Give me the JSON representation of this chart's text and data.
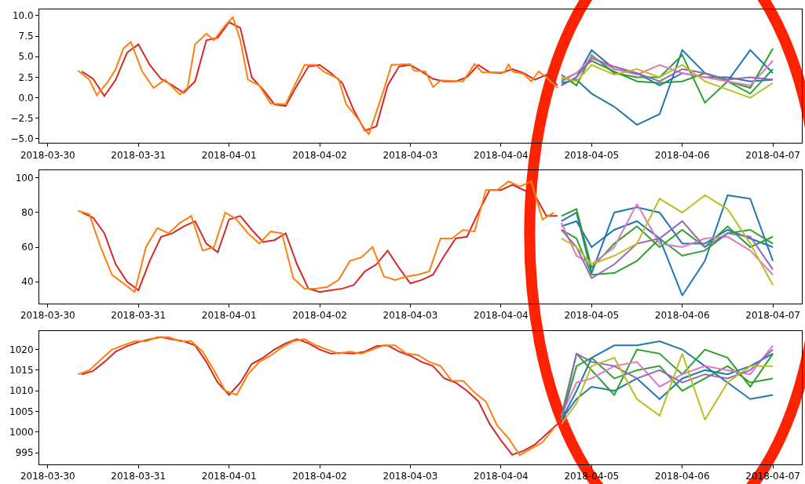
{
  "chart_data": [
    {
      "type": "line",
      "xlim": [
        "2018-03-29T21:45",
        "2018-04-07T07:40"
      ],
      "ylim": [
        -5.5,
        10.76
      ],
      "xticks": [
        "2018-03-30",
        "2018-03-31",
        "2018-04-01",
        "2018-04-02",
        "2018-04-03",
        "2018-04-04",
        "2018-04-05",
        "2018-04-06",
        "2018-04-07"
      ],
      "yticks": [
        {
          "value": -5,
          "label": "−5.0"
        },
        {
          "value": -2.5,
          "label": "−2.5"
        },
        {
          "value": 0,
          "label": "0.0"
        },
        {
          "value": 2.5,
          "label": "2.5"
        },
        {
          "value": 5,
          "label": "5.0"
        },
        {
          "value": 7.5,
          "label": "7.5"
        },
        {
          "value": 10,
          "label": "10.0"
        }
      ],
      "series": [
        {
          "color": "#d62728",
          "x": [
            "2018-03-30T09:00",
            "2018-03-30T12:00",
            "2018-03-30T15:00",
            "2018-03-30T18:00",
            "2018-03-30T21:00",
            "2018-03-31T00:00",
            "2018-03-31T03:00",
            "2018-03-31T06:00",
            "2018-03-31T09:00",
            "2018-03-31T12:00",
            "2018-03-31T15:00",
            "2018-03-31T18:00",
            "2018-03-31T21:00",
            "2018-04-01T00:00",
            "2018-04-01T03:00",
            "2018-04-01T06:00",
            "2018-04-01T09:00",
            "2018-04-01T12:00",
            "2018-04-01T15:00",
            "2018-04-01T18:00",
            "2018-04-01T21:00",
            "2018-04-02T00:00",
            "2018-04-02T03:00",
            "2018-04-02T06:00",
            "2018-04-02T09:00",
            "2018-04-02T12:00",
            "2018-04-02T15:00",
            "2018-04-02T18:00",
            "2018-04-02T21:00",
            "2018-04-03T00:00",
            "2018-04-03T03:00",
            "2018-04-03T06:00",
            "2018-04-03T09:00",
            "2018-04-03T12:00",
            "2018-04-03T15:00",
            "2018-04-03T18:00",
            "2018-04-03T21:00",
            "2018-04-04T00:00",
            "2018-04-04T03:00",
            "2018-04-04T06:00",
            "2018-04-04T09:00",
            "2018-04-04T12:00",
            "2018-04-04T15:00"
          ],
          "values": [
            3.2,
            2.3,
            0.2,
            2.2,
            5.5,
            6.5,
            4.0,
            2.3,
            1.5,
            0.6,
            2.0,
            7.0,
            7.3,
            9.2,
            8.5,
            2.5,
            1.0,
            -0.8,
            -1.0,
            1.5,
            3.8,
            4.0,
            3.0,
            1.8,
            -1.5,
            -4.0,
            -3.5,
            1.5,
            3.8,
            4.0,
            3.2,
            2.3,
            2.0,
            2.0,
            2.5,
            4.0,
            3.1,
            3.0,
            3.5,
            3.0,
            2.2,
            2.8,
            1.5
          ]
        },
        {
          "color": "#ff7f0e",
          "x": [
            "2018-03-30T08:00",
            "2018-03-30T11:00",
            "2018-03-30T13:00",
            "2018-03-30T16:00",
            "2018-03-30T18:00",
            "2018-03-30T20:00",
            "2018-03-30T22:00",
            "2018-03-31T01:00",
            "2018-03-31T04:00",
            "2018-03-31T07:00",
            "2018-03-31T11:00",
            "2018-03-31T13:00",
            "2018-03-31T15:00",
            "2018-03-31T18:00",
            "2018-03-31T20:00",
            "2018-03-31T23:00",
            "2018-04-01T01:00",
            "2018-04-01T03:00",
            "2018-04-01T05:00",
            "2018-04-01T08:00",
            "2018-04-01T11:00",
            "2018-04-01T15:00",
            "2018-04-01T16:00",
            "2018-04-01T20:00",
            "2018-04-01T23:00",
            "2018-04-02T01:00",
            "2018-04-02T05:00",
            "2018-04-02T07:00",
            "2018-04-02T10:00",
            "2018-04-02T13:00",
            "2018-04-02T17:00",
            "2018-04-02T19:00",
            "2018-04-03T00:00",
            "2018-04-03T01:00",
            "2018-04-03T04:00",
            "2018-04-03T06:00",
            "2018-04-03T08:00",
            "2018-04-03T14:00",
            "2018-04-03T17:00",
            "2018-04-03T19:00",
            "2018-04-04T01:00",
            "2018-04-04T02:00",
            "2018-04-04T03:00",
            "2018-04-04T06:00",
            "2018-04-04T08:00",
            "2018-04-04T10:00",
            "2018-04-04T12:00",
            "2018-04-04T15:00"
          ],
          "values": [
            3.3,
            2.2,
            0.3,
            2.0,
            3.5,
            6.0,
            6.8,
            3.2,
            1.2,
            2.2,
            0.4,
            1.2,
            6.5,
            7.8,
            7.0,
            8.8,
            9.8,
            7.0,
            2.2,
            1.5,
            -0.7,
            -0.8,
            0.2,
            4.0,
            4.0,
            3.2,
            2.3,
            -0.8,
            -2.5,
            -4.5,
            1.0,
            4.0,
            4.1,
            3.3,
            3.2,
            1.3,
            2.1,
            2.0,
            4.1,
            3.1,
            3.1,
            4.1,
            3.2,
            2.9,
            2.0,
            3.2,
            2.5,
            1.2
          ]
        },
        {
          "color": "#1f77b4",
          "x": [
            "2018-04-04T16:00",
            "2018-04-04T20:00",
            "2018-04-05T00:00",
            "2018-04-05T06:00",
            "2018-04-05T12:00",
            "2018-04-05T18:00",
            "2018-04-06T00:00",
            "2018-04-06T06:00",
            "2018-04-06T12:00",
            "2018-04-06T18:00",
            "2018-04-07T00:00"
          ],
          "values": [
            1.8,
            2.2,
            0.5,
            -1.1,
            -3.3,
            -2.0,
            5.8,
            3.0,
            2.0,
            5.8,
            3.0
          ]
        },
        {
          "color": "#1f77b4",
          "x": [
            "2018-04-04T16:00",
            "2018-04-04T20:00",
            "2018-04-05T00:00",
            "2018-04-05T06:00",
            "2018-04-05T12:00",
            "2018-04-05T18:00",
            "2018-04-06T00:00",
            "2018-04-06T06:00",
            "2018-04-06T12:00",
            "2018-04-06T18:00",
            "2018-04-07T00:00"
          ],
          "values": [
            1.5,
            2.5,
            5.8,
            3.5,
            3.0,
            1.5,
            3.0,
            2.5,
            2.5,
            2.0,
            2.2
          ]
        },
        {
          "color": "#2ca02c",
          "x": [
            "2018-04-04T16:00",
            "2018-04-04T20:00",
            "2018-04-05T00:00",
            "2018-04-05T06:00",
            "2018-04-05T12:00",
            "2018-04-05T18:00",
            "2018-04-06T00:00",
            "2018-04-06T06:00",
            "2018-04-06T12:00",
            "2018-04-06T18:00",
            "2018-04-07T00:00"
          ],
          "values": [
            2.8,
            1.5,
            5.2,
            3.0,
            2.5,
            2.5,
            5.2,
            -0.6,
            2.0,
            1.2,
            6.0
          ]
        },
        {
          "color": "#2ca02c",
          "x": [
            "2018-04-04T16:00",
            "2018-04-04T20:00",
            "2018-04-05T00:00",
            "2018-04-05T06:00",
            "2018-04-05T12:00",
            "2018-04-05T18:00",
            "2018-04-06T00:00",
            "2018-04-06T06:00",
            "2018-04-06T12:00",
            "2018-04-06T18:00",
            "2018-04-07T00:00"
          ],
          "values": [
            2.0,
            3.0,
            4.5,
            3.2,
            2.0,
            1.8,
            2.0,
            3.0,
            2.0,
            0.5,
            3.5
          ]
        },
        {
          "color": "#e377c2",
          "x": [
            "2018-04-04T16:00",
            "2018-04-04T20:00",
            "2018-04-05T00:00",
            "2018-04-05T06:00",
            "2018-04-05T12:00",
            "2018-04-05T18:00",
            "2018-04-06T00:00",
            "2018-04-06T06:00",
            "2018-04-06T12:00",
            "2018-04-06T18:00",
            "2018-04-07T00:00"
          ],
          "values": [
            2.2,
            3.0,
            5.0,
            3.5,
            2.8,
            4.0,
            3.0,
            2.5,
            2.0,
            1.5,
            4.5
          ]
        },
        {
          "color": "#9467bd",
          "x": [
            "2018-04-04T16:00",
            "2018-04-04T20:00",
            "2018-04-05T00:00",
            "2018-04-05T06:00",
            "2018-04-05T12:00",
            "2018-04-05T18:00",
            "2018-04-06T00:00",
            "2018-04-06T06:00",
            "2018-04-06T12:00",
            "2018-04-06T18:00",
            "2018-04-07T00:00"
          ],
          "values": [
            1.5,
            2.5,
            4.8,
            3.8,
            3.0,
            2.0,
            3.5,
            3.0,
            2.2,
            2.5,
            2.2
          ]
        },
        {
          "color": "#bcbd22",
          "x": [
            "2018-04-04T16:00",
            "2018-04-04T20:00",
            "2018-04-05T00:00",
            "2018-04-05T06:00",
            "2018-04-05T12:00",
            "2018-04-05T18:00",
            "2018-04-06T00:00",
            "2018-04-06T06:00",
            "2018-04-06T12:00",
            "2018-04-06T18:00",
            "2018-04-07T00:00"
          ],
          "values": [
            2.5,
            2.0,
            4.0,
            2.8,
            3.5,
            2.5,
            4.0,
            2.0,
            1.0,
            0.0,
            1.8
          ]
        }
      ]
    },
    {
      "type": "line",
      "xlim": [
        "2018-03-29T21:45",
        "2018-04-07T07:40"
      ],
      "ylim": [
        27.3,
        104.5
      ],
      "xticks": [
        "2018-03-30",
        "2018-03-31",
        "2018-04-01",
        "2018-04-02",
        "2018-04-03",
        "2018-04-04",
        "2018-04-05",
        "2018-04-06",
        "2018-04-07"
      ],
      "yticks": [
        40,
        60,
        80,
        100
      ],
      "x": [
        "2018-03-30T08:00",
        "2018-03-30T11:00",
        "2018-03-30T14:00",
        "2018-03-30T17:00",
        "2018-03-30T20:00",
        "2018-03-30T23:00",
        "2018-03-31T02:00",
        "2018-03-31T05:00",
        "2018-03-31T08:00",
        "2018-03-31T11:00",
        "2018-03-31T14:00",
        "2018-03-31T17:00",
        "2018-03-31T20:00",
        "2018-03-31T23:00",
        "2018-04-01T02:00",
        "2018-04-01T05:00",
        "2018-04-01T08:00",
        "2018-04-01T11:00",
        "2018-04-01T14:00",
        "2018-04-01T17:00",
        "2018-04-01T20:00",
        "2018-04-01T23:00",
        "2018-04-02T02:00",
        "2018-04-02T05:00",
        "2018-04-02T08:00",
        "2018-04-02T11:00",
        "2018-04-02T14:00",
        "2018-04-02T17:00",
        "2018-04-02T20:00",
        "2018-04-02T23:00",
        "2018-04-03T02:00",
        "2018-04-03T05:00",
        "2018-04-03T08:00",
        "2018-04-03T11:00",
        "2018-04-03T14:00",
        "2018-04-03T17:00",
        "2018-04-03T20:00",
        "2018-04-03T23:00",
        "2018-04-04T02:00",
        "2018-04-04T05:00",
        "2018-04-04T08:00",
        "2018-04-04T11:00",
        "2018-04-04T14:00"
      ],
      "series": [
        {
          "color": "#d62728",
          "x": [
            "2018-03-30T09:00",
            "2018-03-30T12:00",
            "2018-03-30T15:00",
            "2018-03-30T18:00",
            "2018-03-30T21:00",
            "2018-03-31T00:00",
            "2018-03-31T03:00",
            "2018-03-31T06:00",
            "2018-03-31T09:00",
            "2018-03-31T12:00",
            "2018-03-31T15:00",
            "2018-03-31T18:00",
            "2018-03-31T21:00",
            "2018-04-01T00:00",
            "2018-04-01T03:00",
            "2018-04-01T06:00",
            "2018-04-01T09:00",
            "2018-04-01T12:00",
            "2018-04-01T15:00",
            "2018-04-01T18:00",
            "2018-04-01T21:00",
            "2018-04-02T00:00",
            "2018-04-02T03:00",
            "2018-04-02T06:00",
            "2018-04-02T09:00",
            "2018-04-02T12:00",
            "2018-04-02T15:00",
            "2018-04-02T18:00",
            "2018-04-02T21:00",
            "2018-04-03T00:00",
            "2018-04-03T03:00",
            "2018-04-03T06:00",
            "2018-04-03T09:00",
            "2018-04-03T12:00",
            "2018-04-03T15:00",
            "2018-04-03T18:00",
            "2018-04-03T21:00",
            "2018-04-04T00:00",
            "2018-04-04T03:00",
            "2018-04-04T06:00",
            "2018-04-04T09:00",
            "2018-04-04T12:00",
            "2018-04-04T15:00"
          ],
          "values": [
            80,
            77,
            68,
            50,
            40,
            35,
            52,
            66,
            68,
            72,
            75,
            62,
            57,
            76,
            78,
            70,
            63,
            64,
            68,
            50,
            36,
            34,
            35,
            36,
            38,
            46,
            50,
            58,
            48,
            39,
            41,
            44,
            55,
            65,
            66,
            80,
            93,
            93,
            96,
            93,
            90,
            78,
            78
          ]
        },
        {
          "color": "#ff7f0e",
          "values": [
            81,
            79,
            60,
            44,
            39,
            34,
            60,
            71,
            68,
            74,
            78,
            58,
            60,
            80,
            76,
            68,
            62,
            69,
            68,
            42,
            36,
            36,
            37,
            41,
            52,
            54,
            60,
            43,
            41,
            43,
            44,
            46,
            65,
            65,
            70,
            69,
            93,
            93,
            98,
            95,
            98,
            76,
            80
          ]
        },
        {
          "color": "#1f77b4",
          "x": [
            "2018-04-04T16:00",
            "2018-04-04T20:00",
            "2018-04-05T00:00",
            "2018-04-05T06:00",
            "2018-04-05T12:00",
            "2018-04-05T18:00",
            "2018-04-06T00:00",
            "2018-04-06T06:00",
            "2018-04-06T12:00",
            "2018-04-06T18:00",
            "2018-04-07T00:00"
          ],
          "values": [
            72,
            75,
            60,
            70,
            75,
            65,
            32,
            52,
            90,
            88,
            52
          ]
        },
        {
          "color": "#1f77b4",
          "x": [
            "2018-04-04T16:00",
            "2018-04-04T20:00",
            "2018-04-05T00:00",
            "2018-04-05T06:00",
            "2018-04-05T12:00",
            "2018-04-05T18:00",
            "2018-04-06T00:00",
            "2018-04-06T06:00",
            "2018-04-06T12:00",
            "2018-04-06T18:00",
            "2018-04-07T00:00"
          ],
          "values": [
            75,
            80,
            45,
            80,
            83,
            80,
            62,
            62,
            70,
            65,
            60
          ]
        },
        {
          "color": "#2ca02c",
          "x": [
            "2018-04-04T16:00",
            "2018-04-04T20:00",
            "2018-04-05T00:00",
            "2018-04-05T06:00",
            "2018-04-05T12:00",
            "2018-04-05T18:00",
            "2018-04-06T00:00",
            "2018-04-06T06:00",
            "2018-04-06T12:00",
            "2018-04-06T18:00",
            "2018-04-07T00:00"
          ],
          "values": [
            78,
            82,
            48,
            62,
            72,
            60,
            70,
            60,
            72,
            60,
            66
          ]
        },
        {
          "color": "#2ca02c",
          "x": [
            "2018-04-04T16:00",
            "2018-04-04T20:00",
            "2018-04-05T00:00",
            "2018-04-05T06:00",
            "2018-04-05T12:00",
            "2018-04-05T18:00",
            "2018-04-06T00:00",
            "2018-04-06T06:00",
            "2018-04-06T12:00",
            "2018-04-06T18:00",
            "2018-04-07T00:00"
          ],
          "values": [
            70,
            65,
            44,
            45,
            52,
            65,
            55,
            58,
            68,
            70,
            62
          ]
        },
        {
          "color": "#e377c2",
          "x": [
            "2018-04-04T16:00",
            "2018-04-04T20:00",
            "2018-04-05T00:00",
            "2018-04-05T06:00",
            "2018-04-05T12:00",
            "2018-04-05T18:00",
            "2018-04-06T00:00",
            "2018-04-06T06:00",
            "2018-04-06T12:00",
            "2018-04-06T18:00",
            "2018-04-07T00:00"
          ],
          "values": [
            74,
            55,
            50,
            60,
            85,
            62,
            60,
            65,
            66,
            58,
            44
          ]
        },
        {
          "color": "#9467bd",
          "x": [
            "2018-04-04T16:00",
            "2018-04-04T20:00",
            "2018-04-05T00:00",
            "2018-04-05T06:00",
            "2018-04-05T12:00",
            "2018-04-05T18:00",
            "2018-04-06T00:00",
            "2018-04-06T06:00",
            "2018-04-06T12:00",
            "2018-04-06T18:00",
            "2018-04-07T00:00"
          ],
          "values": [
            70,
            60,
            42,
            50,
            62,
            65,
            75,
            60,
            68,
            66,
            47
          ]
        },
        {
          "color": "#bcbd22",
          "x": [
            "2018-04-04T16:00",
            "2018-04-04T20:00",
            "2018-04-05T00:00",
            "2018-04-05T06:00",
            "2018-04-05T12:00",
            "2018-04-05T18:00",
            "2018-04-06T00:00",
            "2018-04-06T06:00",
            "2018-04-06T12:00",
            "2018-04-06T18:00",
            "2018-04-07T00:00"
          ],
          "values": [
            65,
            60,
            50,
            55,
            62,
            88,
            80,
            90,
            82,
            62,
            38
          ]
        }
      ]
    },
    {
      "type": "line",
      "xlim": [
        "2018-03-29T21:45",
        "2018-04-07T07:40"
      ],
      "ylim": [
        992.2,
        1024.5
      ],
      "xticks": [
        "2018-03-30",
        "2018-03-31",
        "2018-04-01",
        "2018-04-02",
        "2018-04-03",
        "2018-04-04",
        "2018-04-05",
        "2018-04-06",
        "2018-04-07"
      ],
      "yticks": [
        995,
        1000,
        1005,
        1010,
        1015,
        1020
      ],
      "x": [
        "2018-03-30T08:00",
        "2018-03-30T11:00",
        "2018-03-30T14:00",
        "2018-03-30T17:00",
        "2018-03-30T20:00",
        "2018-03-30T23:00",
        "2018-03-31T02:00",
        "2018-03-31T05:00",
        "2018-03-31T08:00",
        "2018-03-31T11:00",
        "2018-03-31T14:00",
        "2018-03-31T17:00",
        "2018-03-31T20:00",
        "2018-03-31T23:00",
        "2018-04-01T02:00",
        "2018-04-01T05:00",
        "2018-04-01T08:00",
        "2018-04-01T11:00",
        "2018-04-01T14:00",
        "2018-04-01T17:00",
        "2018-04-01T20:00",
        "2018-04-01T23:00",
        "2018-04-02T02:00",
        "2018-04-02T05:00",
        "2018-04-02T08:00",
        "2018-04-02T11:00",
        "2018-04-02T14:00",
        "2018-04-02T17:00",
        "2018-04-02T20:00",
        "2018-04-02T23:00",
        "2018-04-03T02:00",
        "2018-04-03T05:00",
        "2018-04-03T08:00",
        "2018-04-03T11:00",
        "2018-04-03T14:00",
        "2018-04-03T17:00",
        "2018-04-03T20:00",
        "2018-04-03T23:00",
        "2018-04-04T02:00",
        "2018-04-04T05:00",
        "2018-04-04T08:00",
        "2018-04-04T11:00",
        "2018-04-04T14:00"
      ],
      "series": [
        {
          "color": "#d62728",
          "x": [
            "2018-03-30T09:00",
            "2018-03-30T12:00",
            "2018-03-30T15:00",
            "2018-03-30T18:00",
            "2018-03-30T21:00",
            "2018-03-31T00:00",
            "2018-03-31T03:00",
            "2018-03-31T06:00",
            "2018-03-31T09:00",
            "2018-03-31T12:00",
            "2018-03-31T15:00",
            "2018-03-31T18:00",
            "2018-03-31T21:00",
            "2018-04-01T00:00",
            "2018-04-01T03:00",
            "2018-04-01T06:00",
            "2018-04-01T09:00",
            "2018-04-01T12:00",
            "2018-04-01T15:00",
            "2018-04-01T18:00",
            "2018-04-01T21:00",
            "2018-04-02T00:00",
            "2018-04-02T03:00",
            "2018-04-02T06:00",
            "2018-04-02T09:00",
            "2018-04-02T12:00",
            "2018-04-02T15:00",
            "2018-04-02T18:00",
            "2018-04-02T21:00",
            "2018-04-03T00:00",
            "2018-04-03T03:00",
            "2018-04-03T06:00",
            "2018-04-03T09:00",
            "2018-04-03T12:00",
            "2018-04-03T15:00",
            "2018-04-03T18:00",
            "2018-04-03T21:00",
            "2018-04-04T00:00",
            "2018-04-04T03:00",
            "2018-04-04T06:00",
            "2018-04-04T09:00",
            "2018-04-04T12:00",
            "2018-04-04T15:00"
          ],
          "values": [
            1014,
            1014.8,
            1017,
            1019.5,
            1020.8,
            1021.8,
            1022.5,
            1023,
            1022.5,
            1022,
            1021,
            1017,
            1012,
            1009,
            1012,
            1016.5,
            1018,
            1020,
            1021.5,
            1022.5,
            1021.5,
            1020,
            1019,
            1019.2,
            1019,
            1019.5,
            1020.8,
            1021,
            1019.5,
            1018.5,
            1017,
            1016,
            1013,
            1012,
            1010,
            1007.5,
            1002,
            998,
            994.5,
            995.5,
            997,
            999.5,
            1002
          ]
        },
        {
          "color": "#ff7f0e",
          "values": [
            1014,
            1015,
            1017.5,
            1020,
            1021,
            1022,
            1022,
            1023,
            1023,
            1022,
            1022,
            1019.5,
            1015,
            1010,
            1009,
            1014,
            1017,
            1018.5,
            1020.5,
            1022,
            1022.5,
            1021,
            1020,
            1019,
            1019.5,
            1019,
            1020,
            1021,
            1021,
            1019,
            1018.7,
            1017,
            1016,
            1012.4,
            1012.4,
            1009.6,
            1007.4,
            1001.6,
            998.5,
            994.4,
            996,
            997.5,
            1001
          ]
        },
        {
          "color": "#1f77b4",
          "x": [
            "2018-04-04T16:00",
            "2018-04-04T20:00",
            "2018-04-05T00:00",
            "2018-04-05T06:00",
            "2018-04-05T12:00",
            "2018-04-05T18:00",
            "2018-04-06T00:00",
            "2018-04-06T06:00",
            "2018-04-06T12:00",
            "2018-04-06T18:00",
            "2018-04-07T00:00"
          ],
          "values": [
            1003,
            1010,
            1018,
            1021,
            1021,
            1022,
            1020,
            1016,
            1012,
            1008,
            1009
          ]
        },
        {
          "color": "#1f77b4",
          "x": [
            "2018-04-04T16:00",
            "2018-04-04T20:00",
            "2018-04-05T00:00",
            "2018-04-05T06:00",
            "2018-04-05T12:00",
            "2018-04-05T18:00",
            "2018-04-06T00:00",
            "2018-04-06T06:00",
            "2018-04-06T12:00",
            "2018-04-06T18:00",
            "2018-04-07T00:00"
          ],
          "values": [
            1003,
            1008,
            1011,
            1010,
            1013,
            1008,
            1013,
            1015,
            1014,
            1016,
            1019
          ]
        },
        {
          "color": "#2ca02c",
          "x": [
            "2018-04-04T16:00",
            "2018-04-04T20:00",
            "2018-04-05T00:00",
            "2018-04-05T06:00",
            "2018-04-05T12:00",
            "2018-04-05T18:00",
            "2018-04-06T00:00",
            "2018-04-06T06:00",
            "2018-04-06T12:00",
            "2018-04-06T18:00",
            "2018-04-07T00:00"
          ],
          "values": [
            1004,
            1019,
            1015,
            1009,
            1020,
            1019,
            1014,
            1020,
            1018,
            1011,
            1019
          ]
        },
        {
          "color": "#2ca02c",
          "x": [
            "2018-04-04T16:00",
            "2018-04-04T20:00",
            "2018-04-05T00:00",
            "2018-04-05T06:00",
            "2018-04-05T12:00",
            "2018-04-05T18:00",
            "2018-04-06T00:00",
            "2018-04-06T06:00",
            "2018-04-06T12:00",
            "2018-04-06T18:00",
            "2018-04-07T00:00"
          ],
          "values": [
            1003,
            1016,
            1018,
            1013,
            1015,
            1016,
            1010,
            1013,
            1016,
            1012,
            1013
          ]
        },
        {
          "color": "#e377c2",
          "x": [
            "2018-04-04T16:00",
            "2018-04-04T20:00",
            "2018-04-05T00:00",
            "2018-04-05T06:00",
            "2018-04-05T12:00",
            "2018-04-05T18:00",
            "2018-04-06T00:00",
            "2018-04-06T06:00",
            "2018-04-06T12:00",
            "2018-04-06T18:00",
            "2018-04-07T00:00"
          ],
          "values": [
            1004,
            1012,
            1013,
            1016,
            1017,
            1011,
            1014,
            1016,
            1015,
            1014,
            1021
          ]
        },
        {
          "color": "#9467bd",
          "x": [
            "2018-04-04T16:00",
            "2018-04-04T20:00",
            "2018-04-05T00:00",
            "2018-04-05T06:00",
            "2018-04-05T12:00",
            "2018-04-05T18:00",
            "2018-04-06T00:00",
            "2018-04-06T06:00",
            "2018-04-06T12:00",
            "2018-04-06T18:00",
            "2018-04-07T00:00"
          ],
          "values": [
            1003,
            1019,
            1017,
            1016,
            1013,
            1015,
            1012,
            1014,
            1013,
            1015,
            1020
          ]
        },
        {
          "color": "#bcbd22",
          "x": [
            "2018-04-04T16:00",
            "2018-04-04T20:00",
            "2018-04-05T00:00",
            "2018-04-05T06:00",
            "2018-04-05T12:00",
            "2018-04-05T18:00",
            "2018-04-06T00:00",
            "2018-04-06T06:00",
            "2018-04-06T12:00",
            "2018-04-06T18:00",
            "2018-04-07T00:00"
          ],
          "values": [
            1002,
            1007,
            1016,
            1018,
            1008,
            1004,
            1019,
            1003,
            1012,
            1016,
            1016
          ]
        }
      ]
    }
  ]
}
